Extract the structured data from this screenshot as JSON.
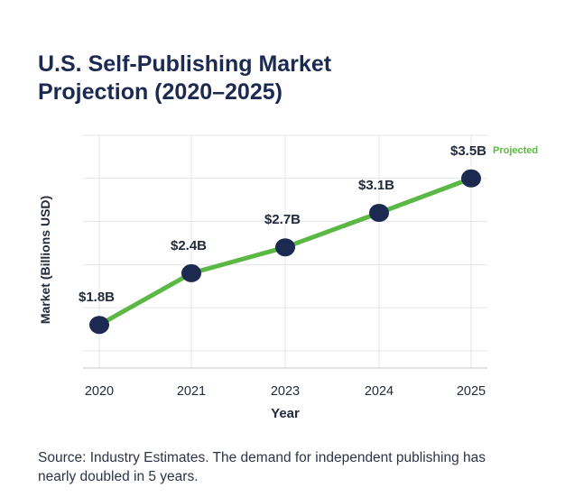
{
  "colors": {
    "title": "#1c2a52",
    "marker": "#1c2a52",
    "line": "#5cb845",
    "grid": "#e3e6ea",
    "axis_text": "#222a3d",
    "projected": "#5cb845"
  },
  "chart_data": {
    "type": "line",
    "title_lines": [
      "U.S. Self-Publishing Market",
      "Projection (2020–2025)"
    ],
    "xlabel": "Year",
    "ylabel": "Market  (Billions USD)",
    "categories": [
      "2020",
      "2021",
      "2023",
      "2024",
      "2025"
    ],
    "series": [
      {
        "name": "Market",
        "values": [
          1.8,
          2.4,
          2.7,
          3.1,
          3.5
        ],
        "labels": [
          "$1.8B",
          "$2.4B",
          "$2.7B",
          "$3.1B",
          "$3.5B"
        ]
      }
    ],
    "ylim": [
      1.3,
      4.0
    ],
    "yticks": [
      1.5,
      2.0,
      2.5,
      3.0,
      3.5,
      4.0
    ],
    "ytick_labels_visible": false,
    "grid": true,
    "annotation": "Projected",
    "annotation_target": "2025"
  },
  "source_text": "Source: Industry Estimates. The demand for independent publishing has nearly doubled in 5 years."
}
